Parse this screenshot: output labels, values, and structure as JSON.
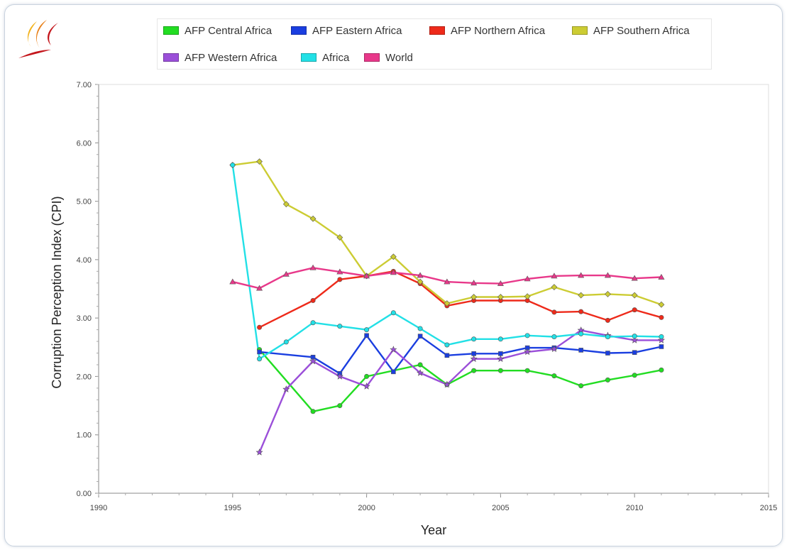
{
  "chart_data": {
    "type": "line",
    "title": "",
    "xlabel": "Year",
    "ylabel": "Corruption Perception Index (CPI)",
    "xlim": [
      1990,
      2015
    ],
    "ylim": [
      0,
      7
    ],
    "x_ticks": [
      1990,
      1995,
      2000,
      2005,
      2010,
      2015
    ],
    "y_ticks": [
      "0.00",
      "1.00",
      "2.00",
      "3.00",
      "4.00",
      "5.00",
      "6.00",
      "7.00"
    ],
    "grid": false,
    "legend_position": "top",
    "series": [
      {
        "name": "AFP Central Africa",
        "color": "#22dd22",
        "marker": "circle",
        "points": [
          [
            1996,
            2.46
          ],
          [
            1998,
            1.4
          ],
          [
            1999,
            1.5
          ],
          [
            2000,
            2.0
          ],
          [
            2002,
            2.2
          ],
          [
            2003,
            1.86
          ],
          [
            2004,
            2.1
          ],
          [
            2005,
            2.1
          ],
          [
            2006,
            2.1
          ],
          [
            2007,
            2.01
          ],
          [
            2008,
            1.84
          ],
          [
            2009,
            1.94
          ],
          [
            2010,
            2.02
          ],
          [
            2011,
            2.11
          ]
        ]
      },
      {
        "name": "AFP Eastern Africa",
        "color": "#1a3ee0",
        "marker": "square",
        "points": [
          [
            1996,
            2.42
          ],
          [
            1998,
            2.33
          ],
          [
            1999,
            2.05
          ],
          [
            2000,
            2.7
          ],
          [
            2001,
            2.08
          ],
          [
            2002,
            2.69
          ],
          [
            2003,
            2.36
          ],
          [
            2004,
            2.39
          ],
          [
            2005,
            2.39
          ],
          [
            2006,
            2.49
          ],
          [
            2007,
            2.49
          ],
          [
            2008,
            2.45
          ],
          [
            2009,
            2.4
          ],
          [
            2010,
            2.41
          ],
          [
            2011,
            2.51
          ]
        ]
      },
      {
        "name": "AFP Northern Africa",
        "color": "#ee2a1a",
        "marker": "circle",
        "points": [
          [
            1996,
            2.84
          ],
          [
            1998,
            3.3
          ],
          [
            1999,
            3.66
          ],
          [
            2000,
            3.72
          ],
          [
            2001,
            3.8
          ],
          [
            2002,
            3.59
          ],
          [
            2003,
            3.21
          ],
          [
            2004,
            3.3
          ],
          [
            2005,
            3.3
          ],
          [
            2006,
            3.3
          ],
          [
            2007,
            3.1
          ],
          [
            2008,
            3.11
          ],
          [
            2009,
            2.96
          ],
          [
            2010,
            3.14
          ],
          [
            2011,
            3.01
          ]
        ]
      },
      {
        "name": "AFP Southern Africa",
        "color": "#cccc33",
        "marker": "diamond",
        "points": [
          [
            1995,
            5.62
          ],
          [
            1996,
            5.68
          ],
          [
            1997,
            4.95
          ],
          [
            1998,
            4.7
          ],
          [
            1999,
            4.38
          ],
          [
            2000,
            3.72
          ],
          [
            2001,
            4.05
          ],
          [
            2002,
            3.62
          ],
          [
            2003,
            3.25
          ],
          [
            2004,
            3.36
          ],
          [
            2005,
            3.36
          ],
          [
            2006,
            3.37
          ],
          [
            2007,
            3.53
          ],
          [
            2008,
            3.39
          ],
          [
            2009,
            3.41
          ],
          [
            2010,
            3.39
          ],
          [
            2011,
            3.23
          ]
        ]
      },
      {
        "name": "AFP Western Africa",
        "color": "#9b4fd9",
        "marker": "star",
        "points": [
          [
            1996,
            0.7
          ],
          [
            1997,
            1.78
          ],
          [
            1998,
            2.26
          ],
          [
            1999,
            2.0
          ],
          [
            2000,
            1.83
          ],
          [
            2001,
            2.46
          ],
          [
            2002,
            2.06
          ],
          [
            2003,
            1.86
          ],
          [
            2004,
            2.3
          ],
          [
            2005,
            2.3
          ],
          [
            2006,
            2.42
          ],
          [
            2007,
            2.47
          ],
          [
            2008,
            2.79
          ],
          [
            2009,
            2.7
          ],
          [
            2010,
            2.62
          ],
          [
            2011,
            2.62
          ]
        ]
      },
      {
        "name": "Africa",
        "color": "#22e0e6",
        "marker": "circle",
        "points": [
          [
            1995,
            5.62
          ],
          [
            1996,
            2.3
          ],
          [
            1997,
            2.59
          ],
          [
            1998,
            2.92
          ],
          [
            1999,
            2.86
          ],
          [
            2000,
            2.8
          ],
          [
            2001,
            3.09
          ],
          [
            2002,
            2.82
          ],
          [
            2003,
            2.54
          ],
          [
            2004,
            2.64
          ],
          [
            2005,
            2.64
          ],
          [
            2006,
            2.7
          ],
          [
            2007,
            2.68
          ],
          [
            2008,
            2.73
          ],
          [
            2009,
            2.68
          ],
          [
            2010,
            2.69
          ],
          [
            2011,
            2.68
          ]
        ]
      },
      {
        "name": "World",
        "color": "#e8388a",
        "marker": "triangle",
        "points": [
          [
            1995,
            3.62
          ],
          [
            1996,
            3.51
          ],
          [
            1997,
            3.75
          ],
          [
            1998,
            3.86
          ],
          [
            1999,
            3.79
          ],
          [
            2000,
            3.72
          ],
          [
            2001,
            3.78
          ],
          [
            2002,
            3.73
          ],
          [
            2003,
            3.62
          ],
          [
            2004,
            3.6
          ],
          [
            2005,
            3.59
          ],
          [
            2006,
            3.67
          ],
          [
            2007,
            3.72
          ],
          [
            2008,
            3.73
          ],
          [
            2009,
            3.73
          ],
          [
            2010,
            3.68
          ],
          [
            2011,
            3.7
          ]
        ]
      }
    ]
  }
}
